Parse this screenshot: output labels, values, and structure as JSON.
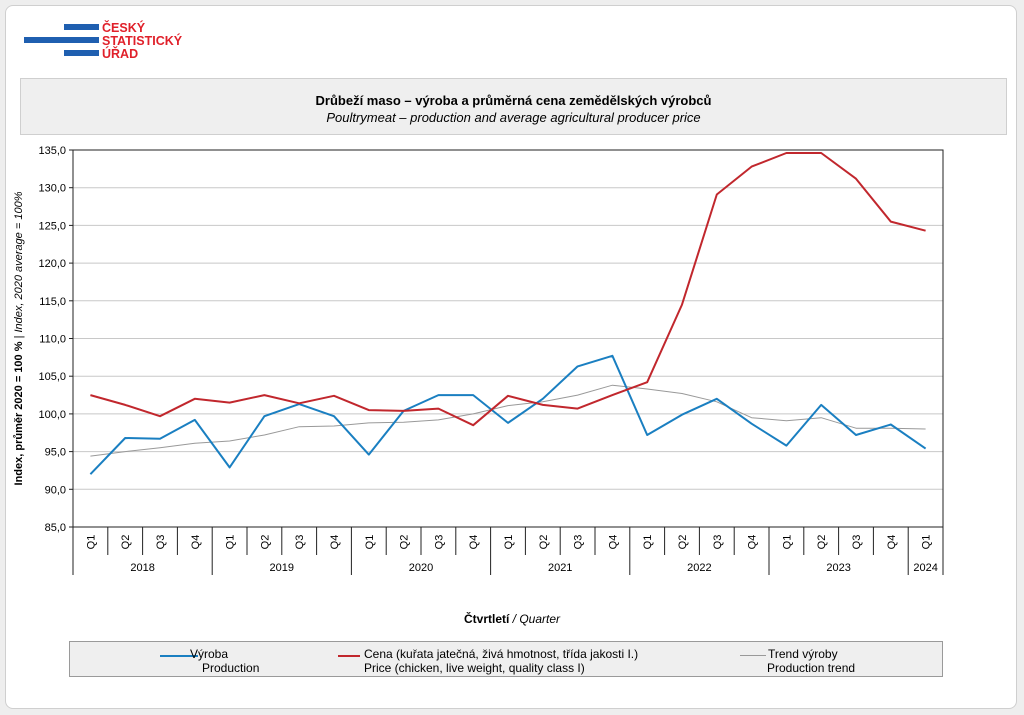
{
  "logo": {
    "line1": "ČESKÝ",
    "line2": "STATISTICKÝ",
    "line3": "ÚŘAD"
  },
  "title": {
    "main": "Drůbeží maso – výroba a průměrná cena zemědělských  výrobců",
    "sub": "Poultrymeat – production and average agricultural producer price"
  },
  "colors": {
    "production": "#1a7fc1",
    "price": "#c1272d",
    "trend": "#999999",
    "grid": "#c8c8c8"
  },
  "chart_data": {
    "type": "line",
    "ylabel_bold": "Index, průměr 2020 = 100 %",
    "ylabel_sep": " | ",
    "ylabel_italic": "Index, 2020 average = 100%",
    "xlabel_bold": "Čtvrtletí",
    "xlabel_italic": " / Quarter",
    "ylim": [
      85,
      135
    ],
    "yticks": [
      "85,0",
      "90,0",
      "95,0",
      "100,0",
      "105,0",
      "110,0",
      "115,0",
      "120,0",
      "125,0",
      "130,0",
      "135,0"
    ],
    "quarters": [
      "Q1",
      "Q2",
      "Q3",
      "Q4",
      "Q1",
      "Q2",
      "Q3",
      "Q4",
      "Q1",
      "Q2",
      "Q3",
      "Q4",
      "Q1",
      "Q2",
      "Q3",
      "Q4",
      "Q1",
      "Q2",
      "Q3",
      "Q4",
      "Q1",
      "Q2",
      "Q3",
      "Q4",
      "Q1"
    ],
    "years": [
      {
        "label": "2018",
        "count": 4
      },
      {
        "label": "2019",
        "count": 4
      },
      {
        "label": "2020",
        "count": 4
      },
      {
        "label": "2021",
        "count": 4
      },
      {
        "label": "2022",
        "count": 4
      },
      {
        "label": "2023",
        "count": 4
      },
      {
        "label": "2024",
        "count": 1
      }
    ],
    "series": [
      {
        "key": "production",
        "name": "Výroba",
        "name_en": "Production",
        "values": [
          92.0,
          96.8,
          96.7,
          99.2,
          92.9,
          99.7,
          101.3,
          99.7,
          94.6,
          100.4,
          102.5,
          102.5,
          98.8,
          102.0,
          106.3,
          107.7,
          97.2,
          99.9,
          102.0,
          98.7,
          95.8,
          101.2,
          97.2,
          98.6,
          95.4
        ]
      },
      {
        "key": "price",
        "name": "Cena (kuřata jatečná, živá hmotnost, třída jakosti I.)",
        "name_en": "Price (chicken, live weight, quality class I)",
        "values": [
          102.5,
          101.2,
          99.7,
          102.0,
          101.5,
          102.5,
          101.4,
          102.4,
          100.5,
          100.4,
          100.7,
          98.5,
          102.4,
          101.2,
          100.7,
          102.5,
          104.2,
          114.5,
          129.1,
          132.8,
          134.6,
          134.6,
          131.2,
          125.5,
          124.3
        ]
      },
      {
        "key": "trend",
        "name": "Trend výroby",
        "name_en": "Production trend",
        "values": [
          94.4,
          95.0,
          95.5,
          96.1,
          96.4,
          97.2,
          98.3,
          98.4,
          98.8,
          98.9,
          99.2,
          100.0,
          101.1,
          101.6,
          102.5,
          103.8,
          103.3,
          102.7,
          101.6,
          99.5,
          99.1,
          99.5,
          98.1,
          98.1,
          98.0
        ]
      }
    ]
  }
}
